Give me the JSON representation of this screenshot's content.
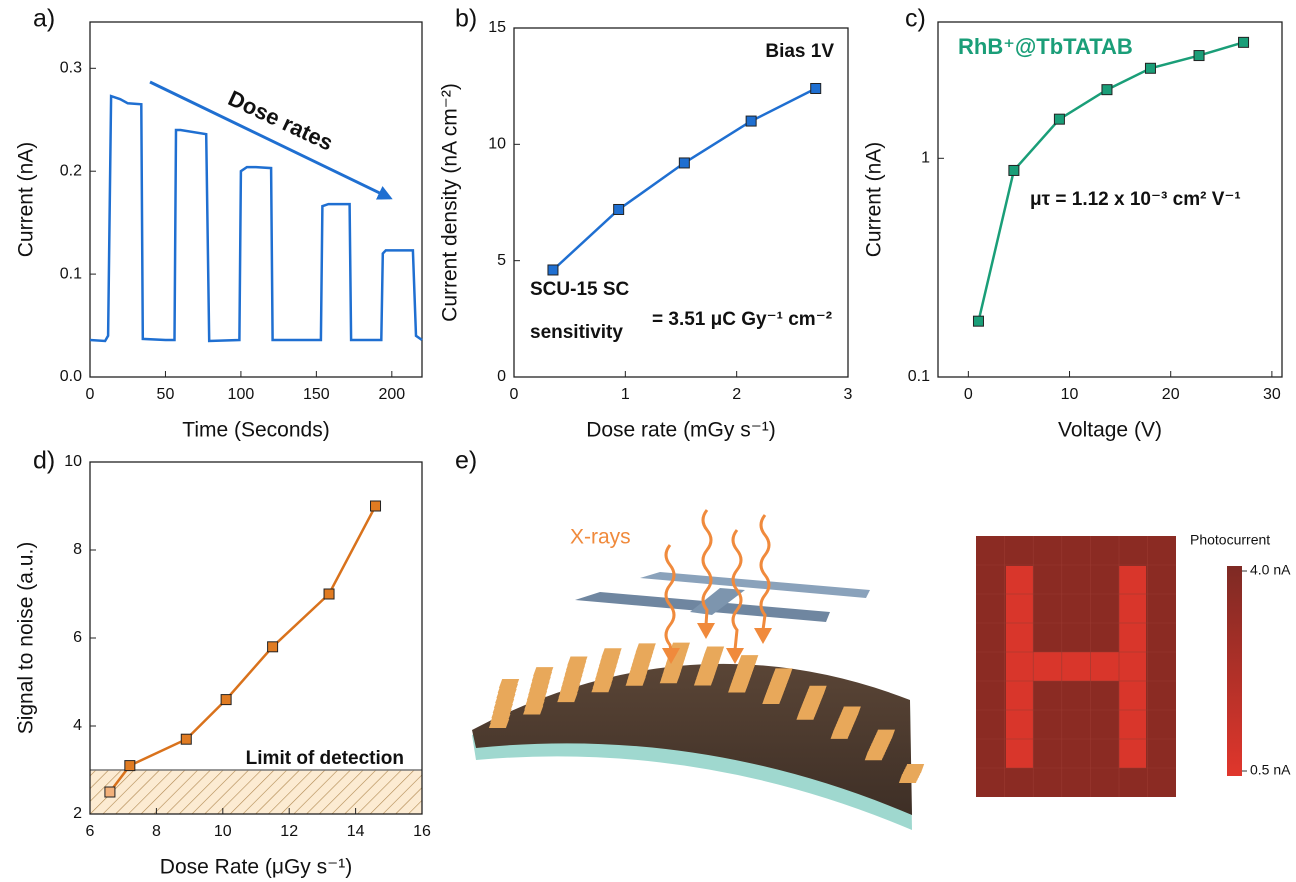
{
  "chart_data": [
    {
      "type": "line",
      "label": "a)",
      "xlabel": "Time (Seconds)",
      "ylabel": "Current (nA)",
      "color": "#1f6fd1",
      "x": [
        0,
        10,
        12,
        14,
        20,
        25,
        34,
        35,
        50,
        56,
        57,
        60,
        77,
        79,
        99,
        100,
        104,
        110,
        120,
        121,
        153,
        154,
        158,
        172,
        173,
        193,
        194,
        196,
        214,
        216,
        220
      ],
      "values": [
        0.036,
        0.035,
        0.04,
        0.273,
        0.27,
        0.266,
        0.265,
        0.037,
        0.036,
        0.036,
        0.24,
        0.24,
        0.236,
        0.035,
        0.036,
        0.2,
        0.204,
        0.204,
        0.203,
        0.036,
        0.036,
        0.166,
        0.168,
        0.168,
        0.036,
        0.036,
        0.12,
        0.123,
        0.123,
        0.04,
        0.036
      ],
      "xlim": [
        0,
        220
      ],
      "ylim": [
        0,
        0.345
      ],
      "xticks": [
        0,
        50,
        100,
        150,
        200
      ],
      "yticks": [
        {
          "value": 0,
          "label": "0.0"
        },
        0.1,
        0.2,
        0.3
      ],
      "annotation": "Dose rates"
    },
    {
      "type": "line",
      "label": "b)",
      "xlabel": "Dose rate (mGy s⁻¹)",
      "ylabel": "Current density (nA cm⁻²)",
      "color": "#1f6fd1",
      "marker": "square",
      "x": [
        0.35,
        0.94,
        1.53,
        2.13,
        2.71
      ],
      "values": [
        4.6,
        7.2,
        9.2,
        11.0,
        12.4
      ],
      "xlim": [
        0,
        3
      ],
      "ylim": [
        0,
        15
      ],
      "xticks": [
        0,
        1,
        2,
        3
      ],
      "yticks": [
        0,
        5,
        10,
        15
      ],
      "annotation": "Bias 1V",
      "sensitivity_text": [
        "SCU-15 SC",
        "sensitivity",
        "= 3.51 μC Gy⁻¹ cm⁻²"
      ]
    },
    {
      "type": "line",
      "label": "c)",
      "xlabel": "Voltage (V)",
      "ylabel": "Current (nA)",
      "color": "#1a9e78",
      "marker": "square",
      "ylog": true,
      "x": [
        1,
        4.5,
        9,
        13.7,
        18,
        22.8,
        27.2
      ],
      "values": [
        0.18,
        0.88,
        1.51,
        2.06,
        2.58,
        2.95,
        3.39
      ],
      "xlim": [
        -3,
        31
      ],
      "ylim": [
        0.1,
        4.2
      ],
      "xticks": [
        0,
        10,
        20,
        30
      ],
      "yticks": [
        0.1,
        1
      ],
      "title": "RhB⁺@TbTATAB",
      "annotation": "μτ = 1.12 x 10⁻³ cm² V⁻¹"
    },
    {
      "type": "line",
      "label": "d)",
      "xlabel": "Dose Rate (μGy s⁻¹)",
      "ylabel": "Signal to noise (a.u.)",
      "color": "#d9721c",
      "marker": "square",
      "marker_colors": [
        "#f2b07a",
        "#e07b22",
        "#e07b22",
        "#e07b22",
        "#e07b22",
        "#e07b22",
        "#e07b22"
      ],
      "x": [
        6.6,
        7.2,
        8.9,
        10.1,
        11.5,
        13.2,
        14.6
      ],
      "values": [
        2.5,
        3.1,
        3.7,
        4.6,
        5.8,
        7.0,
        9.0
      ],
      "xlim": [
        6,
        16
      ],
      "ylim": [
        2,
        10
      ],
      "xticks": [
        6,
        8,
        10,
        12,
        14,
        16
      ],
      "yticks": [
        2,
        4,
        6,
        8,
        10
      ],
      "threshold": 3,
      "threshold_label": "Limit of detection"
    }
  ],
  "illustration": {
    "label": "e)",
    "beam_label": "X-rays",
    "colorbar_title": "Photocurrent",
    "colorbar_ticks": [
      {
        "value": 4.0,
        "label": "4.0 nA"
      },
      {
        "value": 0.5,
        "label": "0.5 nA"
      }
    ]
  }
}
